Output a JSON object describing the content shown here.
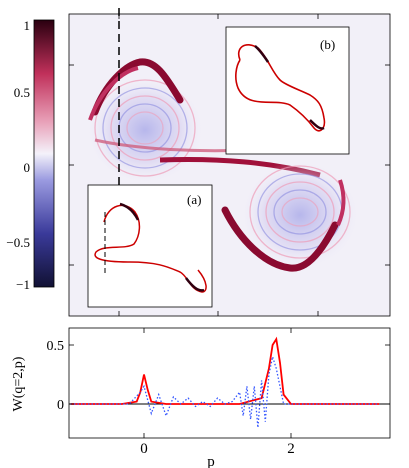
{
  "colorbar": {
    "ticks": [
      "1",
      "0.5",
      "0",
      "−0.5",
      "−1"
    ],
    "tick_values": [
      1,
      0.5,
      0,
      -0.5,
      -1
    ],
    "range": [
      -1,
      1
    ],
    "colors": {
      "low": "#1a1a66",
      "mid_low": "#4444cc",
      "zero": "#f2f0f8",
      "mid_high": "#cc3366",
      "high": "#2a0010"
    }
  },
  "insets": {
    "a": {
      "label": "(a)"
    },
    "b": {
      "label": "(b)"
    }
  },
  "colors": {
    "dashed_marker": "#000000",
    "inset_curve": "#cc0000",
    "panel_bg": "#f2f0f8"
  },
  "chart_data": [
    {
      "type": "heatmap",
      "description_values": "Wigner function W(q,p) map, colorbar from -1 to 1",
      "colorbar_range": [
        -1,
        1
      ]
    },
    {
      "type": "line",
      "ylabel": "W(q=2,p)",
      "xlabel": "p",
      "xticks": [
        "0",
        "2"
      ],
      "yticks": [
        "0.5",
        "0"
      ],
      "ylim": [
        -0.2,
        0.6
      ],
      "xlim": [
        -1,
        3.2
      ],
      "series": [
        {
          "style": "solid",
          "color": "#ff0000",
          "x": [
            -1.0,
            -0.3,
            -0.1,
            -0.05,
            0.0,
            0.05,
            0.1,
            0.3,
            1.3,
            1.6,
            1.7,
            1.75,
            1.8,
            1.85,
            1.9,
            2.0,
            3.2
          ],
          "y": [
            0.0,
            0.0,
            0.02,
            0.1,
            0.25,
            0.12,
            0.02,
            0.0,
            0.0,
            0.05,
            0.3,
            0.5,
            0.55,
            0.35,
            0.08,
            0.0,
            0.0
          ]
        },
        {
          "style": "dotted",
          "color": "#3355ff",
          "x": [
            -1.0,
            -0.2,
            -0.05,
            0.0,
            0.1,
            0.2,
            0.3,
            0.4,
            0.5,
            0.6,
            0.7,
            0.8,
            0.9,
            1.0,
            1.1,
            1.2,
            1.3,
            1.35,
            1.4,
            1.45,
            1.5,
            1.55,
            1.6,
            1.65,
            1.7,
            1.75,
            1.8,
            1.9,
            2.0,
            3.2
          ],
          "y": [
            0.0,
            0.0,
            0.1,
            0.15,
            -0.08,
            0.08,
            -0.1,
            0.06,
            0.0,
            0.05,
            -0.02,
            0.02,
            -0.02,
            0.05,
            0.0,
            0.02,
            0.1,
            -0.1,
            0.15,
            -0.13,
            0.15,
            -0.2,
            0.2,
            -0.15,
            0.25,
            0.4,
            0.3,
            0.0,
            0.0,
            0.0
          ]
        }
      ]
    }
  ]
}
